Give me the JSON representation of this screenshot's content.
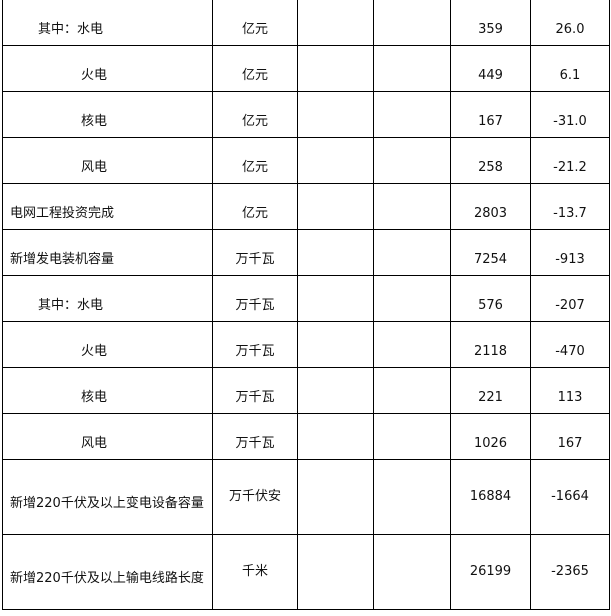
{
  "rows": [
    {
      "name": "其中：水电",
      "indent": 1,
      "unit": "亿元",
      "col3": "",
      "col4": "",
      "value": "359",
      "change": "26.0"
    },
    {
      "name": "火电",
      "indent": 2,
      "unit": "亿元",
      "col3": "",
      "col4": "",
      "value": "449",
      "change": "6.1"
    },
    {
      "name": "核电",
      "indent": 2,
      "unit": "亿元",
      "col3": "",
      "col4": "",
      "value": "167",
      "change": "-31.0"
    },
    {
      "name": "风电",
      "indent": 2,
      "unit": "亿元",
      "col3": "",
      "col4": "",
      "value": "258",
      "change": "-21.2"
    },
    {
      "name": "电网工程投资完成",
      "indent": 0,
      "unit": "亿元",
      "col3": "",
      "col4": "",
      "value": "2803",
      "change": "-13.7"
    },
    {
      "name": "新增发电装机容量",
      "indent": 0,
      "unit": "万千瓦",
      "col3": "",
      "col4": "",
      "value": "7254",
      "change": "-913"
    },
    {
      "name": "其中：水电",
      "indent": 1,
      "unit": "万千瓦",
      "col3": "",
      "col4": "",
      "value": "576",
      "change": "-207"
    },
    {
      "name": "火电",
      "indent": 2,
      "unit": "万千瓦",
      "col3": "",
      "col4": "",
      "value": "2118",
      "change": "-470"
    },
    {
      "name": "核电",
      "indent": 2,
      "unit": "万千瓦",
      "col3": "",
      "col4": "",
      "value": "221",
      "change": "113"
    },
    {
      "name": "风电",
      "indent": 2,
      "unit": "万千瓦",
      "col3": "",
      "col4": "",
      "value": "1026",
      "change": "167"
    },
    {
      "name": "新增220千伏及以上变电设备容量",
      "indent": 0,
      "unit": "万千伏安",
      "col3": "",
      "col4": "",
      "value": "16884",
      "change": "-1664",
      "tall": true
    },
    {
      "name": "新增220千伏及以上输电线路长度",
      "indent": 0,
      "unit": "千米",
      "col3": "",
      "col4": "",
      "value": "26199",
      "change": "-2365",
      "tall": true
    }
  ]
}
